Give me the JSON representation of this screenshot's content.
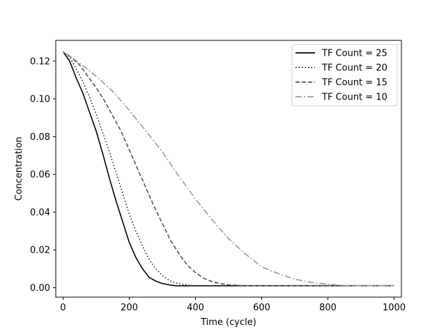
{
  "chart_data": {
    "type": "line",
    "title": "",
    "xlabel": "Time (cycle)",
    "ylabel": "Concentration",
    "xlim": [
      -22,
      1022
    ],
    "ylim": [
      -0.005,
      0.131
    ],
    "xticks": [
      0,
      200,
      400,
      600,
      800,
      1000
    ],
    "yticks": [
      0.0,
      0.02,
      0.04,
      0.06,
      0.08,
      0.1,
      0.12
    ],
    "xtick_labels": [
      "0",
      "200",
      "400",
      "600",
      "800",
      "1000"
    ],
    "ytick_labels": [
      "0.00",
      "0.02",
      "0.04",
      "0.06",
      "0.08",
      "0.10",
      "0.12"
    ],
    "grid": false,
    "legend_position": "top-right",
    "series": [
      {
        "name": "TF Count = 25",
        "color": "#000000",
        "style": "solid",
        "x": [
          0,
          20,
          40,
          60,
          80,
          100,
          120,
          140,
          160,
          180,
          200,
          220,
          240,
          260,
          280,
          300,
          320,
          340,
          360,
          380,
          400,
          500,
          600,
          700,
          800,
          900,
          1000
        ],
        "y": [
          0.125,
          0.12,
          0.111,
          0.103,
          0.093,
          0.083,
          0.071,
          0.058,
          0.046,
          0.035,
          0.024,
          0.016,
          0.01,
          0.0055,
          0.0035,
          0.0022,
          0.0015,
          0.001,
          0.001,
          0.001,
          0.001,
          0.001,
          0.001,
          0.001,
          0.001,
          0.001,
          0.001
        ]
      },
      {
        "name": "TF Count = 20",
        "color": "#222222",
        "style": "dotted",
        "x": [
          0,
          20,
          40,
          60,
          80,
          100,
          120,
          140,
          160,
          180,
          200,
          220,
          240,
          260,
          280,
          300,
          320,
          340,
          360,
          380,
          400,
          450,
          500,
          600,
          700,
          800,
          900,
          1000
        ],
        "y": [
          0.125,
          0.122,
          0.116,
          0.109,
          0.101,
          0.092,
          0.082,
          0.072,
          0.061,
          0.05,
          0.039,
          0.03,
          0.022,
          0.015,
          0.01,
          0.0065,
          0.004,
          0.0025,
          0.0018,
          0.0013,
          0.001,
          0.001,
          0.001,
          0.001,
          0.001,
          0.001,
          0.001,
          0.001
        ]
      },
      {
        "name": "TF Count = 15",
        "color": "#555555",
        "style": "dashed",
        "x": [
          0,
          25,
          50,
          75,
          100,
          125,
          150,
          175,
          200,
          225,
          250,
          275,
          300,
          325,
          350,
          375,
          400,
          425,
          450,
          475,
          500,
          550,
          600,
          700,
          800,
          900,
          1000
        ],
        "y": [
          0.125,
          0.122,
          0.118,
          0.112,
          0.106,
          0.099,
          0.091,
          0.083,
          0.073,
          0.063,
          0.053,
          0.043,
          0.034,
          0.025,
          0.018,
          0.012,
          0.008,
          0.005,
          0.0032,
          0.0022,
          0.0015,
          0.001,
          0.001,
          0.001,
          0.001,
          0.001,
          0.001
        ]
      },
      {
        "name": "TF Count = 10",
        "color": "#999999",
        "style": "dashdot",
        "x": [
          0,
          50,
          100,
          150,
          200,
          250,
          300,
          350,
          400,
          450,
          500,
          550,
          600,
          650,
          700,
          750,
          800,
          850,
          900,
          1000
        ],
        "y": [
          0.125,
          0.119,
          0.112,
          0.104,
          0.094,
          0.083,
          0.072,
          0.059,
          0.047,
          0.036,
          0.026,
          0.018,
          0.011,
          0.0075,
          0.0045,
          0.0028,
          0.0018,
          0.0012,
          0.001,
          0.001
        ]
      }
    ]
  }
}
